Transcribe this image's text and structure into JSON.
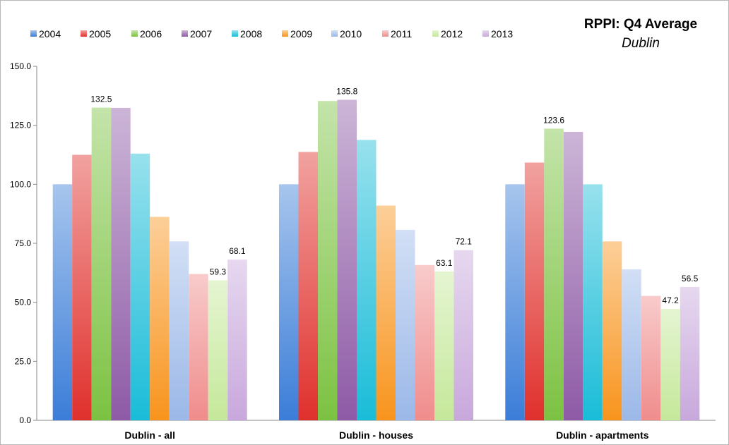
{
  "chart_data": {
    "type": "bar",
    "title": "RPPI: Q4 Average",
    "subtitle": "Dublin",
    "categories": [
      "Dublin - all",
      "Dublin - houses",
      "Dublin - apartments"
    ],
    "ylim": [
      0,
      150
    ],
    "yticks": [
      "0.0",
      "25.0",
      "50.0",
      "75.0",
      "100.0",
      "125.0",
      "150.0"
    ],
    "grid": false,
    "legend_position": "top-left",
    "series": [
      {
        "name": "2004",
        "color": "#3b7dd8",
        "values": [
          100.0,
          100.0,
          100.0
        ]
      },
      {
        "name": "2005",
        "color": "#e0302c",
        "values": [
          112.5,
          113.7,
          109.2
        ]
      },
      {
        "name": "2006",
        "color": "#7cc242",
        "values": [
          132.5,
          135.3,
          123.6
        ]
      },
      {
        "name": "2007",
        "color": "#8e5aa6",
        "values": [
          132.4,
          135.8,
          122.2
        ]
      },
      {
        "name": "2008",
        "color": "#19bcd8",
        "values": [
          113.0,
          118.8,
          100.0
        ]
      },
      {
        "name": "2009",
        "color": "#f8941d",
        "values": [
          86.2,
          91.0,
          75.8
        ]
      },
      {
        "name": "2010",
        "color": "#9bb8e8",
        "values": [
          75.8,
          80.7,
          64.0
        ]
      },
      {
        "name": "2011",
        "color": "#f08c8c",
        "values": [
          62.0,
          65.8,
          52.7
        ]
      },
      {
        "name": "2012",
        "color": "#c5e89a",
        "values": [
          59.3,
          63.1,
          47.2
        ]
      },
      {
        "name": "2013",
        "color": "#c8a8dc",
        "values": [
          68.1,
          72.1,
          56.5
        ]
      }
    ],
    "data_labels": [
      {
        "category": 0,
        "series": 2,
        "text": "132.5"
      },
      {
        "category": 0,
        "series": 8,
        "text": "59.3"
      },
      {
        "category": 0,
        "series": 9,
        "text": "68.1"
      },
      {
        "category": 1,
        "series": 3,
        "text": "135.8"
      },
      {
        "category": 1,
        "series": 8,
        "text": "63.1"
      },
      {
        "category": 1,
        "series": 9,
        "text": "72.1"
      },
      {
        "category": 2,
        "series": 2,
        "text": "123.6"
      },
      {
        "category": 2,
        "series": 8,
        "text": "47.2"
      },
      {
        "category": 2,
        "series": 9,
        "text": "56.5"
      }
    ]
  }
}
